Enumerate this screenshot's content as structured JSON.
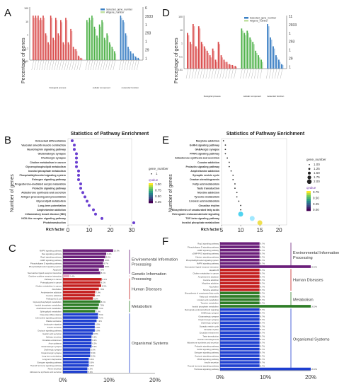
{
  "panels": {
    "A": "A",
    "B": "B",
    "C": "C",
    "D": "D",
    "E": "E",
    "F": "F"
  },
  "go_common": {
    "ylabel": "Percentage of genes",
    "legend": [
      "Selected_gene_number",
      "Allgene_number"
    ],
    "groups": [
      "biological process",
      "cellular component",
      "molecular function"
    ],
    "colors": {
      "bp": "#d94a4a",
      "cc": "#4fb24a",
      "mf": "#3a7fc4",
      "light": "#f2b6b6"
    }
  },
  "enrich_common": {
    "title": "Statistics of Pathway Enrichment",
    "ylabel": "Number of genes",
    "xlabel": "Rich factor",
    "legend_title_size": "gene_number",
    "legend_title_color": "qvalue"
  },
  "chart_data": [
    {
      "panel": "A",
      "type": "bar",
      "title": "",
      "ylabel": "Percentage of genes",
      "right_axis": [
        "6",
        "2933",
        "1",
        "293",
        "1",
        "29",
        "1"
      ],
      "series": [
        {
          "name": "Selected_gene_number",
          "values": [
            100,
            100,
            100,
            95,
            100,
            60,
            40,
            100,
            50,
            95,
            60,
            90,
            40,
            95,
            40,
            70,
            30,
            25,
            10,
            5,
            90,
            95,
            100,
            75,
            55,
            80,
            90,
            50,
            60,
            40,
            30,
            20,
            100,
            90,
            60,
            30,
            20,
            15,
            8,
            5
          ]
        },
        {
          "name": "Allgene_number",
          "values": [
            95,
            95,
            90,
            90,
            95,
            55,
            35,
            95,
            45,
            90,
            55,
            85,
            35,
            90,
            35,
            65,
            25,
            20,
            8,
            4,
            85,
            90,
            95,
            70,
            50,
            75,
            85,
            45,
            55,
            35,
            25,
            15,
            95,
            85,
            55,
            25,
            15,
            10,
            5,
            3
          ]
        }
      ],
      "group_sizes": [
        20,
        12,
        8
      ]
    },
    {
      "panel": "D",
      "type": "bar",
      "title": "",
      "ylabel": "Percentage of genes",
      "right_axis": [
        "11",
        "2933",
        "1",
        "293",
        "1",
        "29",
        "1"
      ],
      "series": [
        {
          "name": "Selected_gene_number",
          "values": [
            80,
            60,
            100,
            50,
            95,
            60,
            50,
            40,
            30,
            45,
            20,
            60,
            30,
            20,
            15,
            10,
            8,
            6,
            90,
            80,
            85,
            70,
            60,
            40,
            30,
            20,
            100,
            70,
            50,
            30,
            20,
            10
          ]
        },
        {
          "name": "Allgene_number",
          "values": [
            75,
            55,
            95,
            45,
            90,
            55,
            45,
            35,
            25,
            40,
            15,
            55,
            25,
            15,
            10,
            8,
            5,
            4,
            85,
            75,
            80,
            65,
            55,
            35,
            25,
            15,
            95,
            65,
            45,
            25,
            15,
            8
          ]
        }
      ],
      "group_sizes": [
        18,
        8,
        6
      ]
    },
    {
      "panel": "B",
      "type": "scatter",
      "title": "Statistics of Pathway Enrichment",
      "xlabel": "Rich factor",
      "ylabel": "Number of genes",
      "xlim": [
        0,
        30
      ],
      "xticks": [
        0,
        10,
        20,
        30
      ],
      "categories": [
        "Osteoclast differentiation",
        "Vascular smooth muscle contraction",
        "Neurotrophin signaling pathway",
        "Glutamatergic synapse",
        "Cholinergic synapse",
        "Choline metabolism in cancer",
        "Glycerophospholipid metabolism",
        "Inositol phosphate metabolism",
        "Phosphatidylinositol signaling system",
        "Estrogen signaling pathway",
        "Progesterone-mediated oocyte maturation",
        "Prolactin signaling pathway",
        "Aldosterone synthesis and secretion",
        "Antigen processing and presentation",
        "Glycerolipid metabolism",
        "Long-term potentiation",
        "Amphetamine addiction",
        "Inflammatory bowel disease (IBD)",
        "NOD-like receptor signaling pathway",
        "Phototransduction"
      ],
      "x": [
        2,
        3,
        3,
        4,
        4,
        4,
        4,
        5,
        5,
        5,
        6,
        6,
        7,
        8,
        9,
        10,
        12,
        13,
        16,
        31
      ],
      "size_legend": [
        "1"
      ],
      "color_legend": [
        "1.00",
        "0.75",
        "0.50",
        "0.25"
      ]
    },
    {
      "panel": "E",
      "type": "scatter",
      "title": "Statistics of Pathway Enrichment",
      "xlabel": "Rich factor",
      "ylabel": "Number of genes",
      "xlim": [
        5,
        22
      ],
      "xticks": [
        5,
        10,
        15,
        20
      ],
      "categories": [
        "Morphine addiction",
        "GnRH signaling pathway",
        "GABAergic synapse",
        "PPAR signaling pathway",
        "Aldosterone synthesis and secretion",
        "Cocaine addiction",
        "Prolactin signaling pathway",
        "Amphetamine addiction",
        "Synaptic vesicle cycle",
        "Ovarian steroidogenesis",
        "Fatty acid metabolism",
        "Taste transduction",
        "Nicotine addiction",
        "Tyrosine metabolism",
        "Linoleic acid metabolism",
        "Circadian rhythm",
        "Biosynthesis of unsaturated fatty acids",
        "Retrograde endocannabinoid signaling",
        "TGF-beta signaling pathway",
        "Inositol phosphate metabolism"
      ],
      "x": [
        5.5,
        6,
        6,
        6,
        6.5,
        7,
        7,
        7.5,
        8,
        8,
        8.5,
        8.5,
        9,
        9,
        9.5,
        10,
        10,
        10,
        13,
        15
      ],
      "size_legend": [
        "1.00",
        "1.25",
        "1.50",
        "1.75",
        "2.00"
      ],
      "color_legend": [
        "0.75",
        "0.50",
        "0.25",
        "0.00"
      ]
    },
    {
      "panel": "C",
      "type": "bar",
      "title": "",
      "xticks": [
        "0%",
        "10%",
        "20%"
      ],
      "xlim": [
        0,
        20
      ],
      "categories": [
        "MAPK signaling pathway",
        "Ras signaling pathway",
        "Rap1 signaling pathway",
        "cAMP signaling pathway",
        "Phospholipase D signaling pathway",
        "Phosphatidylinositol signaling system",
        "Apoptosis",
        "Neuroactive ligand-receptor interaction",
        "Cytokine-cytokine receptor interaction",
        "Pathways in cancer",
        "Proteoglycans in cancer",
        "Choline metabolism in cancer",
        "Alcoholism",
        "Amphetamine addiction",
        "Cocaine addiction",
        "Pathogenic E.coli",
        "Glycerophospholipid metabolism",
        "Inositol phosphate metabolism",
        "Arachidonic acid metabolism",
        "Sphingolipid metabolism",
        "Osteoclast differentiation",
        "Chemokine signaling pathway",
        "Platelet activation",
        "Leukocyte migration",
        "Insulin secretion",
        "Oxytocin signaling pathway",
        "Gastric acid secretion",
        "Salivary secretion",
        "Circadian entrainment",
        "Axon guidance",
        "Glutamatergic synapse",
        "Cholinergic synapse",
        "Dopaminergic synapse",
        "Long-term potentiation",
        "Long-term depression",
        "Estrogen signaling pathway",
        "Thyroid hormone signaling pathway",
        "Renin secretion",
        "Aldosterone synthesis and secretion"
      ],
      "values": [
        10.9,
        9.4,
        9.2,
        8.9,
        8.7,
        8.9,
        7.8,
        8.1,
        1.4,
        8.4,
        8.1,
        8.3,
        7.8,
        7.0,
        6.9,
        6.5,
        8.1,
        7.8,
        7.6,
        7.0,
        7.6,
        7.6,
        7.3,
        6.9,
        6.9,
        6.9,
        6.5,
        6.2,
        6.2,
        6.2,
        6.2,
        5.9,
        5.9,
        5.9,
        5.6,
        5.6,
        5.6,
        5.3,
        5.3
      ],
      "groups": [
        {
          "name": "Environmental Information Processing",
          "count": 8,
          "color": "#6b1f7a"
        },
        {
          "name": "Genetic Information Processing",
          "count": 1,
          "color": "#e8a6c0"
        },
        {
          "name": "Human Diseases",
          "count": 7,
          "color": "#c41e1e"
        },
        {
          "name": "Metabolism",
          "count": 4,
          "color": "#2e7d27"
        },
        {
          "name": "Organismal Systems",
          "count": 19,
          "color": "#1e3fd0"
        }
      ]
    },
    {
      "panel": "F",
      "type": "bar",
      "title": "",
      "xticks": [
        "0%",
        "10%",
        "20%"
      ],
      "xlim": [
        0,
        20
      ],
      "categories": [
        "Rap1 signaling pathway",
        "Phospholipase D signaling pathway",
        "cAMP signaling pathway",
        "cGMP-PKG signaling pathway",
        "Calcium signaling pathway",
        "Phosphatidylinositol signaling system",
        "MAPK signaling pathway",
        "Neuroactive ligand-receptor interaction",
        "Hepatitis B",
        "Choline metabolism in cancer",
        "Amphetamine addiction",
        "Cocaine addiction",
        "Morphine addiction",
        "Alcoholism",
        "Nicotine addiction",
        "Biosynthesis of unsaturated fatty acids",
        "Fatty acid metabolism",
        "Linoleic acid metabolism",
        "Tyrosine metabolism",
        "Inositol phosphate metabolism",
        "Retrograde endocannabinoid signaling",
        "GABAergic synapse",
        "Glutamatergic synapse",
        "Dopaminergic synapse",
        "Cholinergic synapse",
        "Synaptic vesicle cycle",
        "Circadian rhythm",
        "Circadian entrainment",
        "Taste transduction",
        "Ovarian steroidogenesis",
        "Aldosterone synthesis and secretion",
        "Prolactin signaling pathway",
        "GnRH signaling pathway",
        "Estrogen signaling pathway",
        "Oxytocin signaling pathway",
        "PPAR signaling pathway",
        "Insulin secretion",
        "Thyroid hormone signaling pathway",
        "TGF-beta signaling pathway"
      ],
      "values": [
        8.7,
        8.7,
        8.7,
        8.7,
        8.7,
        8.7,
        8.7,
        20.0,
        8.7,
        8.7,
        8.7,
        8.7,
        8.7,
        8.7,
        8.7,
        8.7,
        8.7,
        8.7,
        8.7,
        20.0,
        8.7,
        8.7,
        8.7,
        8.7,
        8.7,
        8.7,
        8.7,
        8.7,
        8.7,
        8.7,
        8.7,
        8.7,
        8.7,
        8.7,
        8.7,
        8.7,
        8.7,
        8.7,
        20.0
      ],
      "groups": [
        {
          "name": "Environmental Information Processing",
          "count": 8,
          "color": "#6b1f7a"
        },
        {
          "name": "Human Diseases",
          "count": 7,
          "color": "#c41e1e"
        },
        {
          "name": "Metabolism",
          "count": 5,
          "color": "#2e7d27"
        },
        {
          "name": "Organismal Systems",
          "count": 19,
          "color": "#1e3fd0"
        }
      ]
    }
  ]
}
